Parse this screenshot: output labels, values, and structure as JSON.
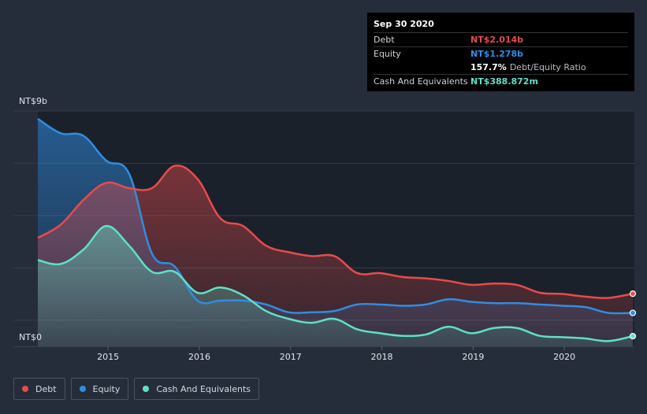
{
  "tooltip": {
    "date": "Sep 30 2020",
    "rows": [
      {
        "label": "Debt",
        "value": "NT$2.014b",
        "color": "#e84b4b"
      },
      {
        "label": "Equity",
        "value": "NT$1.278b",
        "color": "#2f8de3"
      },
      {
        "label": "",
        "value": "157.7%",
        "note": "Debt/Equity Ratio",
        "color": "#ffffff"
      },
      {
        "label": "Cash And Equivalents",
        "value": "NT$388.872m",
        "color": "#5fe0c8"
      }
    ]
  },
  "chart_data": {
    "type": "area",
    "title": "",
    "ylabel": "",
    "y_top_label": "NT$9b",
    "y_bottom_label": "NT$0",
    "ylim": [
      0,
      9
    ],
    "xlim": [
      2014.23,
      2020.75
    ],
    "x_ticks": [
      {
        "value": 2015.0,
        "label": "2015"
      },
      {
        "value": 2016.0,
        "label": "2016"
      },
      {
        "value": 2017.0,
        "label": "2017"
      },
      {
        "value": 2018.0,
        "label": "2018"
      },
      {
        "value": 2019.0,
        "label": "2019"
      },
      {
        "value": 2020.0,
        "label": "2020"
      }
    ],
    "highlight_from": 2014.23,
    "highlight_to": 2020.75,
    "series": [
      {
        "name": "Debt",
        "color": "#e84b4b",
        "points": [
          [
            2014.23,
            4.15
          ],
          [
            2014.48,
            4.65
          ],
          [
            2014.73,
            5.6
          ],
          [
            2014.98,
            6.25
          ],
          [
            2015.23,
            6.05
          ],
          [
            2015.48,
            6.05
          ],
          [
            2015.73,
            6.9
          ],
          [
            2015.98,
            6.4
          ],
          [
            2016.23,
            4.9
          ],
          [
            2016.48,
            4.6
          ],
          [
            2016.73,
            3.85
          ],
          [
            2016.98,
            3.6
          ],
          [
            2017.23,
            3.45
          ],
          [
            2017.48,
            3.45
          ],
          [
            2017.73,
            2.8
          ],
          [
            2017.98,
            2.8
          ],
          [
            2018.23,
            2.65
          ],
          [
            2018.48,
            2.6
          ],
          [
            2018.73,
            2.5
          ],
          [
            2018.98,
            2.35
          ],
          [
            2019.23,
            2.4
          ],
          [
            2019.48,
            2.35
          ],
          [
            2019.73,
            2.05
          ],
          [
            2019.98,
            2.0
          ],
          [
            2020.23,
            1.9
          ],
          [
            2020.48,
            1.85
          ],
          [
            2020.75,
            2.014
          ]
        ]
      },
      {
        "name": "Equity",
        "color": "#2f8de3",
        "points": [
          [
            2014.23,
            8.7
          ],
          [
            2014.48,
            8.15
          ],
          [
            2014.73,
            8.05
          ],
          [
            2014.98,
            7.1
          ],
          [
            2015.23,
            6.6
          ],
          [
            2015.48,
            3.55
          ],
          [
            2015.73,
            3.05
          ],
          [
            2015.98,
            1.75
          ],
          [
            2016.23,
            1.75
          ],
          [
            2016.48,
            1.75
          ],
          [
            2016.73,
            1.6
          ],
          [
            2016.98,
            1.3
          ],
          [
            2017.23,
            1.3
          ],
          [
            2017.48,
            1.35
          ],
          [
            2017.73,
            1.6
          ],
          [
            2017.98,
            1.6
          ],
          [
            2018.23,
            1.55
          ],
          [
            2018.48,
            1.6
          ],
          [
            2018.73,
            1.8
          ],
          [
            2018.98,
            1.7
          ],
          [
            2019.23,
            1.65
          ],
          [
            2019.48,
            1.65
          ],
          [
            2019.73,
            1.6
          ],
          [
            2019.98,
            1.55
          ],
          [
            2020.23,
            1.5
          ],
          [
            2020.48,
            1.28
          ],
          [
            2020.75,
            1.278
          ]
        ]
      },
      {
        "name": "Cash And Equivalents",
        "color": "#5fe0c8",
        "points": [
          [
            2014.23,
            3.3
          ],
          [
            2014.48,
            3.15
          ],
          [
            2014.73,
            3.7
          ],
          [
            2014.98,
            4.6
          ],
          [
            2015.23,
            3.85
          ],
          [
            2015.48,
            2.85
          ],
          [
            2015.73,
            2.85
          ],
          [
            2015.98,
            2.05
          ],
          [
            2016.23,
            2.25
          ],
          [
            2016.48,
            1.95
          ],
          [
            2016.73,
            1.35
          ],
          [
            2016.98,
            1.05
          ],
          [
            2017.23,
            0.9
          ],
          [
            2017.48,
            1.05
          ],
          [
            2017.73,
            0.65
          ],
          [
            2017.98,
            0.5
          ],
          [
            2018.23,
            0.4
          ],
          [
            2018.48,
            0.45
          ],
          [
            2018.73,
            0.75
          ],
          [
            2018.98,
            0.5
          ],
          [
            2019.23,
            0.7
          ],
          [
            2019.48,
            0.7
          ],
          [
            2019.73,
            0.4
          ],
          [
            2019.98,
            0.35
          ],
          [
            2020.23,
            0.3
          ],
          [
            2020.48,
            0.2
          ],
          [
            2020.75,
            0.389
          ]
        ]
      }
    ]
  },
  "legend": [
    {
      "label": "Debt",
      "color": "#e84b4b"
    },
    {
      "label": "Equity",
      "color": "#2f8de3"
    },
    {
      "label": "Cash And Equivalents",
      "color": "#5fe0c8"
    }
  ]
}
